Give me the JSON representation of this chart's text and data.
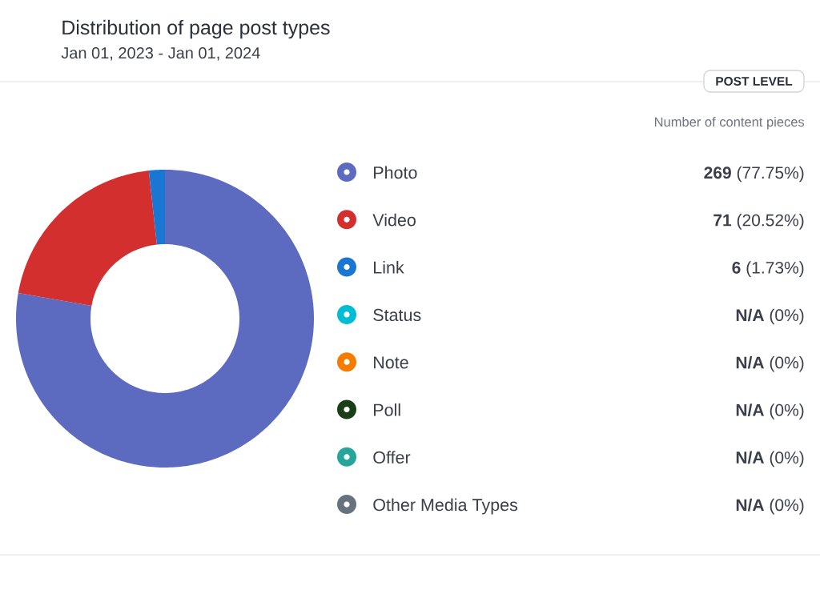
{
  "chart_data": {
    "type": "donut",
    "title": "Distribution of page post types",
    "subtitle": "Jan 01, 2023 - Jan 01, 2024",
    "categories": [
      "Photo",
      "Video",
      "Link",
      "Status",
      "Note",
      "Poll",
      "Offer",
      "Other Media Types"
    ],
    "values": [
      269,
      71,
      6,
      0,
      0,
      0,
      0,
      0
    ],
    "value_labels": [
      "**269** (77.75%)",
      "**71** (20.52%)",
      "**6** (1.73%)",
      "**N/A** (0%)",
      "**N/A** (0%)",
      "**N/A** (0%)",
      "**N/A** (0%)",
      "**N/A** (0%)"
    ],
    "colors": [
      "#5c6bc0",
      "#d32f2f",
      "#1976d2",
      "#00bcd4",
      "#f57c00",
      "#1a3e16",
      "#26a69a",
      "#66737f"
    ],
    "legend": "right",
    "annotations": [
      "POST LEVEL",
      "Number of content pieces"
    ]
  }
}
